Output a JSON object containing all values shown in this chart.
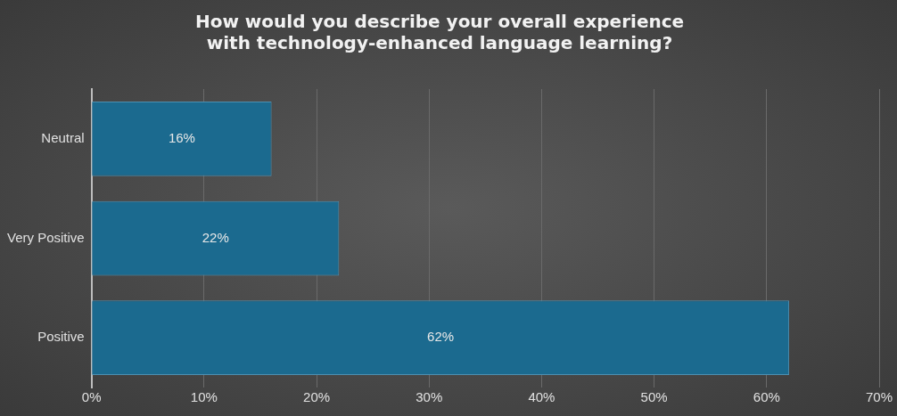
{
  "chart_data": {
    "type": "bar",
    "orientation": "horizontal",
    "title": "How would you describe your overall experience\nwith technology-enhanced language learning?",
    "categories": [
      "Neutral",
      "Very Positive",
      "Positive"
    ],
    "values": [
      16,
      22,
      62
    ],
    "value_labels": [
      "16%",
      "22%",
      "62%"
    ],
    "color": "#1b6a8f",
    "xlim": [
      0,
      70
    ],
    "xticks": [
      {
        "value": 0,
        "label": "0%"
      },
      {
        "value": 10,
        "label": "10%"
      },
      {
        "value": 20,
        "label": "20%"
      },
      {
        "value": 30,
        "label": "30%"
      },
      {
        "value": 40,
        "label": "40%"
      },
      {
        "value": 50,
        "label": "50%"
      },
      {
        "value": 60,
        "label": "60%"
      },
      {
        "value": 70,
        "label": "70%"
      }
    ],
    "grid": "x"
  }
}
